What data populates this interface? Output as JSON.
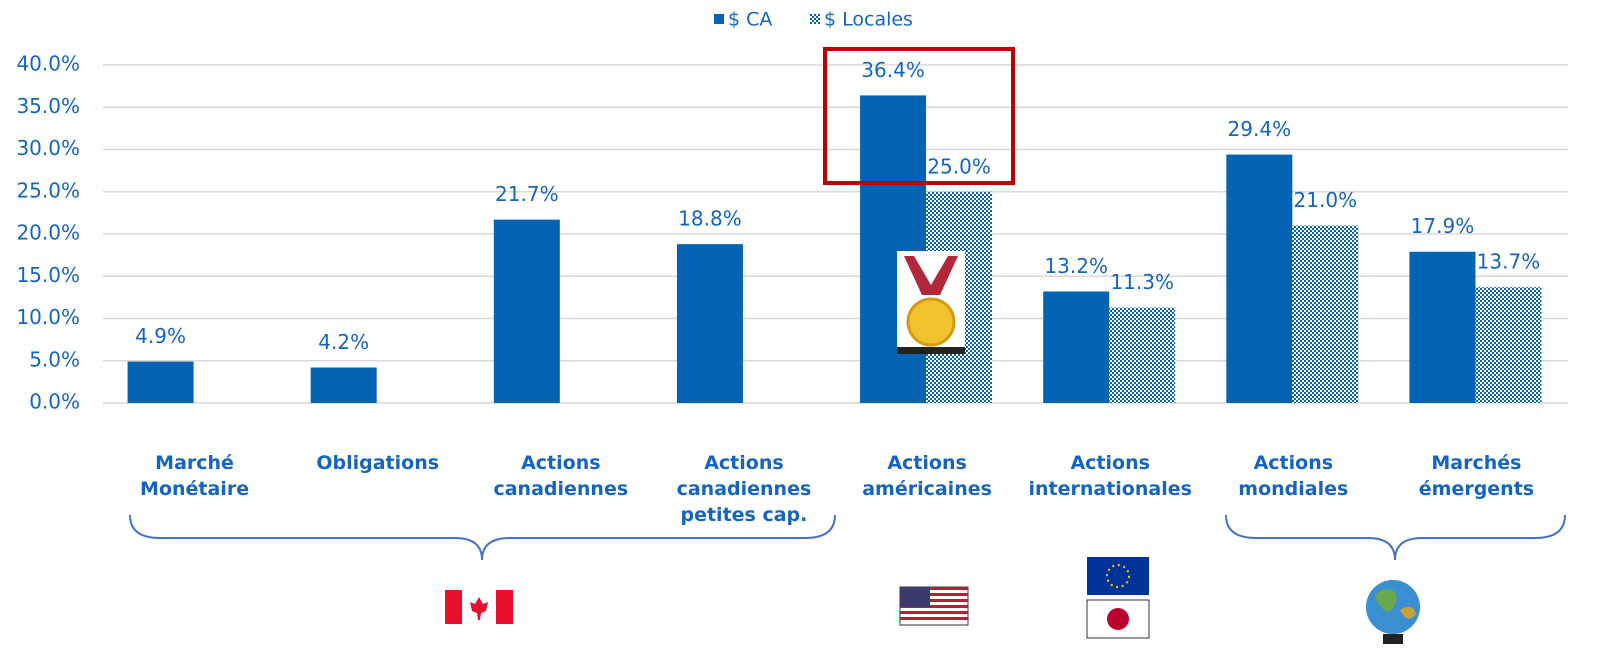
{
  "chart_data": {
    "type": "bar",
    "categories": [
      "Marché Monétaire",
      "Obligations",
      "Actions canadiennes",
      "Actions canadiennes petites cap.",
      "Actions américaines",
      "Actions internationales",
      "Actions mondiales",
      "Marchés émergents"
    ],
    "series": [
      {
        "name": "$ CA",
        "color": "#0563b4",
        "values": [
          4.9,
          4.2,
          21.7,
          18.8,
          36.4,
          13.2,
          29.4,
          17.9
        ],
        "value_labels": [
          "4.9%",
          "4.2%",
          "21.7%",
          "18.8%",
          "36.4%",
          "13.2%",
          "29.4%",
          "17.9%"
        ]
      },
      {
        "name": "$ Locales",
        "color": "#0563b4",
        "values": [
          null,
          null,
          null,
          null,
          25.0,
          11.3,
          21.0,
          13.7
        ],
        "value_labels": [
          null,
          null,
          null,
          null,
          "25.0%",
          "11.3%",
          "21.0%",
          "13.7%"
        ]
      }
    ],
    "ylim": [
      0,
      40
    ],
    "yticks": [
      {
        "value": 0,
        "label": "0.0%"
      },
      {
        "value": 5,
        "label": "5.0%"
      },
      {
        "value": 10,
        "label": "10.0%"
      },
      {
        "value": 15,
        "label": "15.0%"
      },
      {
        "value": 20,
        "label": "20.0%"
      },
      {
        "value": 25,
        "label": "25.0%"
      },
      {
        "value": 30,
        "label": "30.0%"
      },
      {
        "value": 35,
        "label": "35.0%"
      },
      {
        "value": 40,
        "label": "40.0%"
      }
    ],
    "grid": true,
    "legend": "top"
  }
}
